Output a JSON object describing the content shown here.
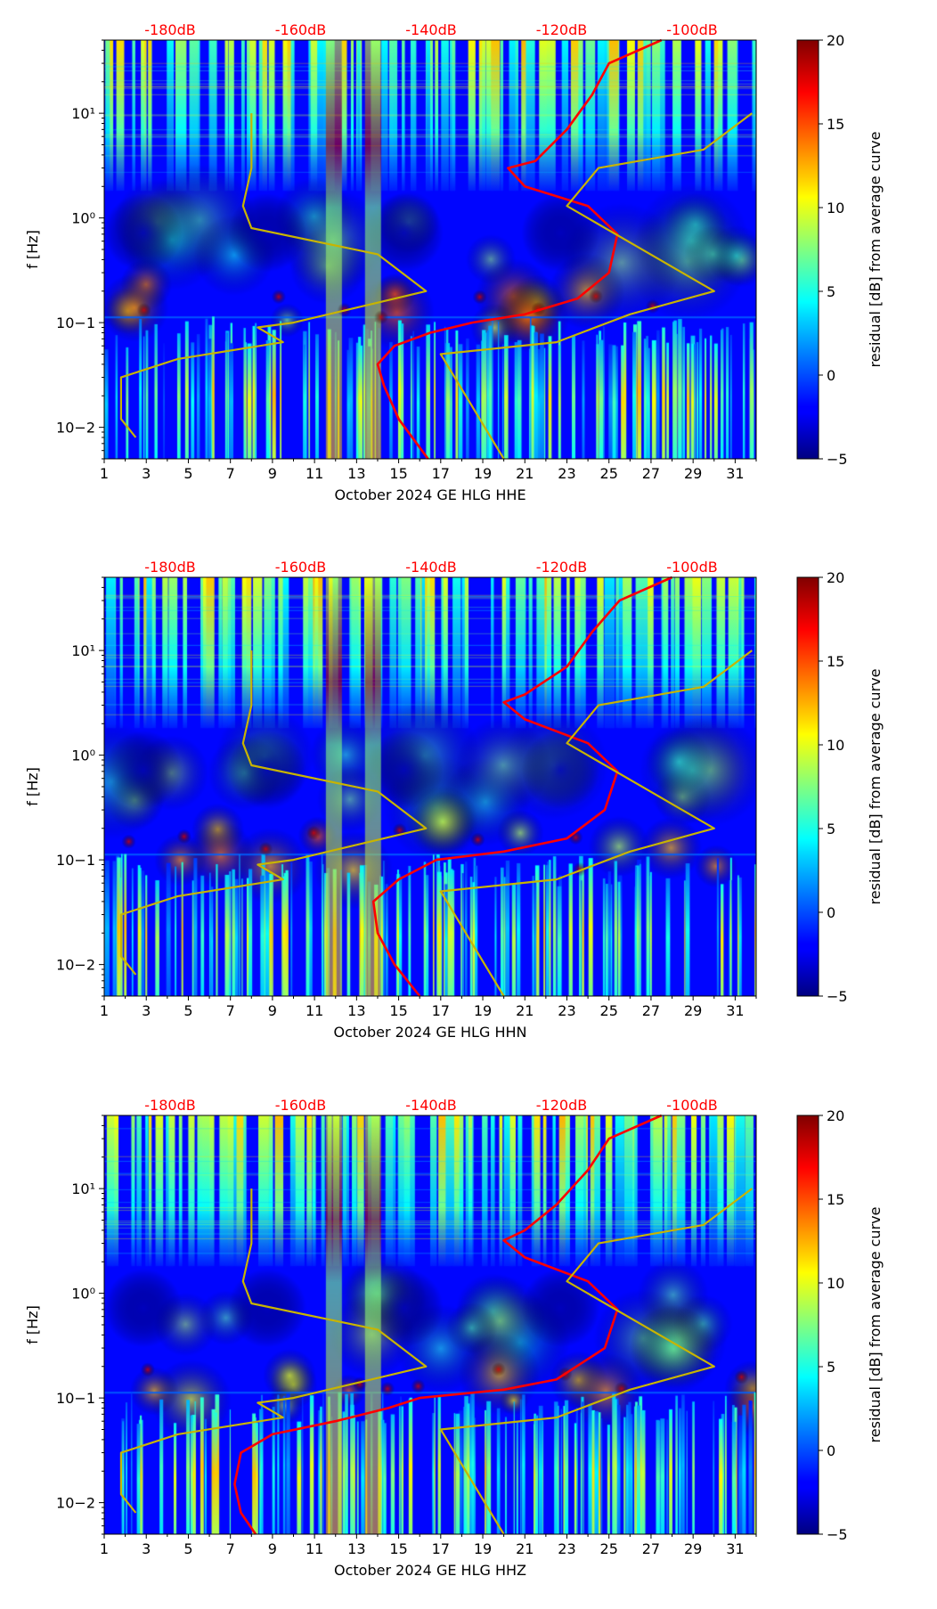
{
  "chart_data": [
    {
      "type": "heatmap",
      "xlabel": "October 2024 GE HLG  HHE",
      "ylabel": "f [Hz]",
      "x_ticks": [
        "1",
        "3",
        "5",
        "7",
        "9",
        "11",
        "13",
        "15",
        "17",
        "19",
        "21",
        "23",
        "25",
        "27",
        "29",
        "31"
      ],
      "y_ticks": [
        "10−2",
        "10−1",
        "10⁰",
        "10¹"
      ],
      "top_ticks": [
        "-180dB",
        "-160dB",
        "-140dB",
        "-120dB",
        "-100dB"
      ],
      "colorbar": {
        "label": "residual [dB] from average curve",
        "ticks": [
          "20",
          "15",
          "10",
          "5",
          "0",
          "−5"
        ],
        "range": [
          -5,
          20
        ],
        "colormap": "jet"
      },
      "xlim": [
        1,
        32
      ],
      "ylim_hz": [
        0.005,
        50
      ],
      "series": [
        {
          "color": "#ff0000",
          "data": [
            [
              16.4,
              0.005
            ],
            [
              15.0,
              0.012
            ],
            [
              14.3,
              0.025
            ],
            [
              14.0,
              0.04
            ],
            [
              14.8,
              0.06
            ],
            [
              16.5,
              0.08
            ],
            [
              18.5,
              0.1
            ],
            [
              21.0,
              0.12
            ],
            [
              23.5,
              0.17
            ],
            [
              25.0,
              0.3
            ],
            [
              25.4,
              0.7
            ],
            [
              24.0,
              1.3
            ],
            [
              21.0,
              2.0
            ],
            [
              20.2,
              3.0
            ],
            [
              21.5,
              3.5
            ],
            [
              23.0,
              7.0
            ],
            [
              24.2,
              15
            ],
            [
              25.0,
              30
            ],
            [
              27.5,
              50
            ]
          ]
        },
        {
          "color": "#c8b400",
          "data": [
            [
              2.5,
              0.008
            ],
            [
              1.8,
              0.012
            ],
            [
              1.8,
              0.03
            ],
            [
              4.5,
              0.045
            ],
            [
              9.5,
              0.065
            ],
            [
              8.3,
              0.09
            ],
            [
              10.0,
              0.1
            ],
            [
              16.3,
              0.2
            ],
            [
              14.0,
              0.45
            ],
            [
              8.0,
              0.8
            ],
            [
              7.6,
              1.3
            ],
            [
              8.0,
              3.0
            ],
            [
              8.0,
              10
            ]
          ]
        },
        {
          "color": "#c8b400",
          "data": [
            [
              20.0,
              0.005
            ],
            [
              17.0,
              0.05
            ],
            [
              22.5,
              0.065
            ],
            [
              26.0,
              0.12
            ],
            [
              30.0,
              0.2
            ],
            [
              23.0,
              1.3
            ],
            [
              24.5,
              3.0
            ],
            [
              29.5,
              4.5
            ],
            [
              31.8,
              10
            ]
          ]
        }
      ]
    },
    {
      "type": "heatmap",
      "xlabel": "October 2024 GE HLG  HHN",
      "ylabel": "f [Hz]",
      "x_ticks": [
        "1",
        "3",
        "5",
        "7",
        "9",
        "11",
        "13",
        "15",
        "17",
        "19",
        "21",
        "23",
        "25",
        "27",
        "29",
        "31"
      ],
      "y_ticks": [
        "10−2",
        "10−1",
        "10⁰",
        "10¹"
      ],
      "top_ticks": [
        "-180dB",
        "-160dB",
        "-140dB",
        "-120dB",
        "-100dB"
      ],
      "colorbar": {
        "label": "residual [dB] from average curve",
        "ticks": [
          "20",
          "15",
          "10",
          "5",
          "0",
          "−5"
        ],
        "range": [
          -5,
          20
        ],
        "colormap": "jet"
      },
      "xlim": [
        1,
        32
      ],
      "ylim_hz": [
        0.005,
        50
      ],
      "series": [
        {
          "color": "#ff0000",
          "data": [
            [
              16.0,
              0.005
            ],
            [
              14.8,
              0.01
            ],
            [
              14.0,
              0.02
            ],
            [
              13.8,
              0.04
            ],
            [
              15.0,
              0.065
            ],
            [
              16.8,
              0.1
            ],
            [
              20.0,
              0.12
            ],
            [
              23.0,
              0.16
            ],
            [
              24.8,
              0.3
            ],
            [
              25.4,
              0.7
            ],
            [
              24.0,
              1.3
            ],
            [
              21.0,
              2.2
            ],
            [
              20.0,
              3.2
            ],
            [
              21.0,
              3.8
            ],
            [
              23.0,
              7.0
            ],
            [
              24.2,
              15
            ],
            [
              25.5,
              30
            ],
            [
              28.0,
              50
            ]
          ]
        },
        {
          "color": "#c8b400",
          "data": [
            [
              2.5,
              0.008
            ],
            [
              1.8,
              0.012
            ],
            [
              1.8,
              0.03
            ],
            [
              4.5,
              0.045
            ],
            [
              9.5,
              0.065
            ],
            [
              8.3,
              0.09
            ],
            [
              10.0,
              0.1
            ],
            [
              16.3,
              0.2
            ],
            [
              14.0,
              0.45
            ],
            [
              8.0,
              0.8
            ],
            [
              7.6,
              1.3
            ],
            [
              8.0,
              3.0
            ],
            [
              8.0,
              10
            ]
          ]
        },
        {
          "color": "#c8b400",
          "data": [
            [
              20.0,
              0.005
            ],
            [
              17.0,
              0.05
            ],
            [
              22.5,
              0.065
            ],
            [
              26.0,
              0.12
            ],
            [
              30.0,
              0.2
            ],
            [
              23.0,
              1.3
            ],
            [
              24.5,
              3.0
            ],
            [
              29.5,
              4.5
            ],
            [
              31.8,
              10
            ]
          ]
        }
      ]
    },
    {
      "type": "heatmap",
      "xlabel": "October 2024 GE HLG  HHZ",
      "ylabel": "f [Hz]",
      "x_ticks": [
        "1",
        "3",
        "5",
        "7",
        "9",
        "11",
        "13",
        "15",
        "17",
        "19",
        "21",
        "23",
        "25",
        "27",
        "29",
        "31"
      ],
      "y_ticks": [
        "10−2",
        "10−1",
        "10⁰",
        "10¹"
      ],
      "top_ticks": [
        "-180dB",
        "-160dB",
        "-140dB",
        "-120dB",
        "-100dB"
      ],
      "colorbar": {
        "label": "residual [dB] from average curve",
        "ticks": [
          "20",
          "15",
          "10",
          "5",
          "0",
          "−5"
        ],
        "range": [
          -5,
          20
        ],
        "colormap": "jet"
      },
      "xlim": [
        1,
        32
      ],
      "ylim_hz": [
        0.005,
        50
      ],
      "series": [
        {
          "color": "#ff0000",
          "data": [
            [
              8.2,
              0.005
            ],
            [
              7.5,
              0.008
            ],
            [
              7.2,
              0.015
            ],
            [
              7.5,
              0.03
            ],
            [
              9.0,
              0.045
            ],
            [
              12.0,
              0.06
            ],
            [
              14.5,
              0.08
            ],
            [
              16.0,
              0.1
            ],
            [
              20.0,
              0.12
            ],
            [
              22.5,
              0.15
            ],
            [
              24.8,
              0.3
            ],
            [
              25.4,
              0.7
            ],
            [
              24.0,
              1.3
            ],
            [
              21.0,
              2.2
            ],
            [
              20.0,
              3.2
            ],
            [
              21.0,
              4.0
            ],
            [
              22.5,
              7.0
            ],
            [
              24.0,
              15
            ],
            [
              25.0,
              30
            ],
            [
              27.5,
              50
            ]
          ]
        },
        {
          "color": "#c8b400",
          "data": [
            [
              2.5,
              0.008
            ],
            [
              1.8,
              0.012
            ],
            [
              1.8,
              0.03
            ],
            [
              4.5,
              0.045
            ],
            [
              9.5,
              0.065
            ],
            [
              8.3,
              0.09
            ],
            [
              10.0,
              0.1
            ],
            [
              16.3,
              0.2
            ],
            [
              14.0,
              0.45
            ],
            [
              8.0,
              0.8
            ],
            [
              7.6,
              1.3
            ],
            [
              8.0,
              3.0
            ],
            [
              8.0,
              10
            ]
          ]
        },
        {
          "color": "#c8b400",
          "data": [
            [
              20.0,
              0.005
            ],
            [
              17.0,
              0.05
            ],
            [
              22.5,
              0.065
            ],
            [
              26.0,
              0.12
            ],
            [
              30.0,
              0.2
            ],
            [
              23.0,
              1.3
            ],
            [
              24.5,
              3.0
            ],
            [
              29.5,
              4.5
            ],
            [
              31.8,
              10
            ]
          ]
        }
      ]
    }
  ]
}
